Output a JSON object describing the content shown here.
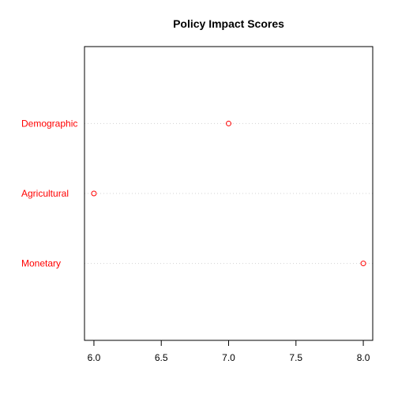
{
  "chart_data": {
    "type": "scatter",
    "title": "Policy Impact Scores",
    "xlabel": "",
    "ylabel": "",
    "xlim": [
      5.93,
      8.07
    ],
    "x_ticks": [
      6.0,
      6.5,
      7.0,
      7.5,
      8.0
    ],
    "x_tick_labels": [
      "6.0",
      "6.5",
      "7.0",
      "7.5",
      "8.0"
    ],
    "categories": [
      "Monetary",
      "Agricultural",
      "Demographic"
    ],
    "values": [
      8.0,
      6.0,
      7.0
    ],
    "marker": "open-circle",
    "grid": "dotted guide line per category",
    "colors": {
      "points": "#ff0000",
      "labels": "#ff0000",
      "guides": "#d3d3d3",
      "frame": "#000000"
    }
  }
}
